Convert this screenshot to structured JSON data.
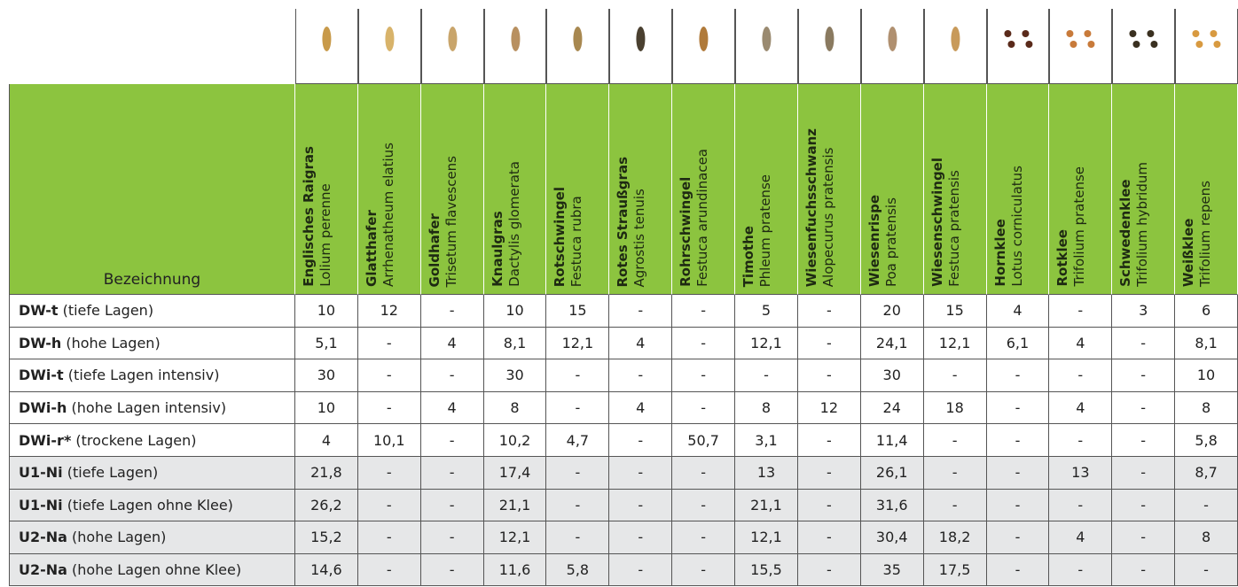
{
  "table": {
    "header": "Bezeichnung",
    "columns": [
      {
        "name": "Englisches Raigras",
        "latin": "Lolium perenne"
      },
      {
        "name": "Glatthafer",
        "latin": "Arrhenatheum elatius"
      },
      {
        "name": "Goldhafer",
        "latin": "Trisetum flavescens"
      },
      {
        "name": "Knaulgras",
        "latin": "Dactylis glomerata"
      },
      {
        "name": "Rotschwingel",
        "latin": "Festuca rubra"
      },
      {
        "name": "Rotes Straußgras",
        "latin": "Agrostis tenuis"
      },
      {
        "name": "Rohrschwingel",
        "latin": "Festuca arundinacea"
      },
      {
        "name": "Timothe",
        "latin": "Phleum pratense"
      },
      {
        "name": "Wiesenfuchsschwanz",
        "latin": "Alopecurus pratensis"
      },
      {
        "name": "Wiesenrispe",
        "latin": "Poa pratensis"
      },
      {
        "name": "Wiesenschwingel",
        "latin": "Festuca pratensis"
      },
      {
        "name": "Hornklee",
        "latin": "Lotus corniculatus"
      },
      {
        "name": "Rotklee",
        "latin": "Trifolium pratense"
      },
      {
        "name": "Schwedenklee",
        "latin": "Trifolium hybridum"
      },
      {
        "name": "Weißklee",
        "latin": "Trifolium repens"
      }
    ],
    "rows": [
      {
        "code": "DW-t",
        "desc": "(tiefe Lagen)",
        "cells": [
          "10",
          "12",
          "-",
          "10",
          "15",
          "-",
          "-",
          "5",
          "-",
          "20",
          "15",
          "4",
          "-",
          "3",
          "6"
        ]
      },
      {
        "code": "DW-h",
        "desc": "(hohe Lagen)",
        "cells": [
          "5,1",
          "-",
          "4",
          "8,1",
          "12,1",
          "4",
          "-",
          "12,1",
          "-",
          "24,1",
          "12,1",
          "6,1",
          "4",
          "-",
          "8,1"
        ]
      },
      {
        "code": "DWi-t",
        "desc": "(tiefe Lagen intensiv)",
        "cells": [
          "30",
          "-",
          "-",
          "30",
          "-",
          "-",
          "-",
          "-",
          "-",
          "30",
          "-",
          "-",
          "-",
          "-",
          "10"
        ]
      },
      {
        "code": "DWi-h",
        "desc": "(hohe Lagen intensiv)",
        "cells": [
          "10",
          "-",
          "4",
          "8",
          "-",
          "4",
          "-",
          "8",
          "12",
          "24",
          "18",
          "-",
          "4",
          "-",
          "8"
        ]
      },
      {
        "code": "DWi-r*",
        "desc": "(trockene Lagen)",
        "cells": [
          "4",
          "10,1",
          "-",
          "10,2",
          "4,7",
          "-",
          "50,7",
          "3,1",
          "-",
          "11,4",
          "-",
          "-",
          "-",
          "-",
          "5,8"
        ]
      },
      {
        "code": "U1-Ni",
        "desc": "(tiefe Lagen)",
        "cells": [
          "21,8",
          "-",
          "-",
          "17,4",
          "-",
          "-",
          "-",
          "13",
          "-",
          "26,1",
          "-",
          "-",
          "13",
          "-",
          "8,7"
        ]
      },
      {
        "code": "U1-Ni",
        "desc": "(tiefe Lagen ohne Klee)",
        "cells": [
          "26,2",
          "-",
          "-",
          "21,1",
          "-",
          "-",
          "-",
          "21,1",
          "-",
          "31,6",
          "-",
          "-",
          "-",
          "-",
          "-"
        ]
      },
      {
        "code": "U2-Na",
        "desc": "(hohe Lagen)",
        "cells": [
          "15,2",
          "-",
          "-",
          "12,1",
          "-",
          "-",
          "-",
          "12,1",
          "-",
          "30,4",
          "18,2",
          "-",
          "4",
          "-",
          "8"
        ]
      },
      {
        "code": "U2-Na",
        "desc": "(hohe Lagen ohne Klee)",
        "cells": [
          "14,6",
          "-",
          "-",
          "11,6",
          "5,8",
          "-",
          "-",
          "15,5",
          "-",
          "35",
          "17,5",
          "-",
          "-",
          "-",
          "-"
        ]
      }
    ]
  }
}
